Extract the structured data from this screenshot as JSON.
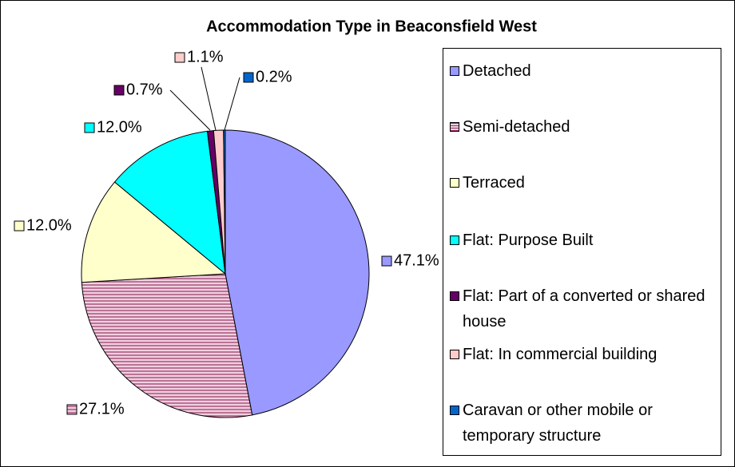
{
  "chart_data": {
    "type": "pie",
    "title": "Accommodation Type in Beaconsfield West",
    "categories": [
      "Detached",
      "Semi-detached",
      "Terraced",
      "Flat: Purpose Built",
      "Flat: Part of a converted or shared house",
      "Flat: In commercial building",
      "Caravan or other mobile or temporary structure"
    ],
    "values": [
      47.1,
      27.1,
      12.0,
      12.0,
      0.7,
      1.1,
      0.2
    ],
    "value_labels": [
      "47.1%",
      "27.1%",
      "12.0%",
      "12.0%",
      "0.7%",
      "1.1%",
      "0.2%"
    ],
    "colors": [
      "#9999ff",
      "#993366",
      "#ffffcc",
      "#00ffff",
      "#660066",
      "#ffcccc",
      "#0066cc"
    ],
    "legend": "right"
  }
}
